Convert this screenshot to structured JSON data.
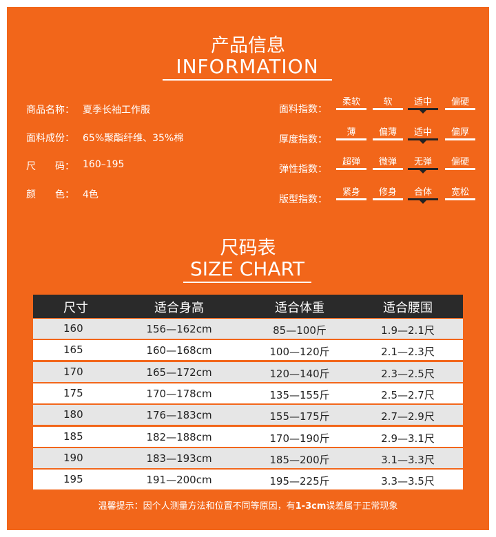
{
  "header": {
    "title": "产品信息",
    "subtitle": "INFORMATION"
  },
  "info": [
    {
      "label": "商品名称：",
      "value": "夏季长袖工作服"
    },
    {
      "label": "面料成份：",
      "value": "65%聚酯纤维、35%棉"
    },
    {
      "label": "尺　　码：",
      "value": "160–195"
    },
    {
      "label": "颜　　色：",
      "value": "4色"
    }
  ],
  "indices": [
    {
      "label": "面料指数：",
      "options": [
        "柔软",
        "软",
        "适中",
        "偏硬"
      ],
      "selected": 2
    },
    {
      "label": "厚度指数：",
      "options": [
        "薄",
        "偏薄",
        "适中",
        "偏厚"
      ],
      "selected": 2
    },
    {
      "label": "弹性指数：",
      "options": [
        "超弹",
        "微弹",
        "无弹",
        "偏硬"
      ],
      "selected": 2
    },
    {
      "label": "版型指数：",
      "options": [
        "紧身",
        "修身",
        "合体",
        "宽松"
      ],
      "selected": 2
    }
  ],
  "size_chart": {
    "title": "尺码表",
    "subtitle": "SIZE CHART",
    "columns": [
      "尺寸",
      "适合身高",
      "适合体重",
      "适合腰围"
    ],
    "rows": [
      [
        "160",
        "156—162cm",
        "85—100斤",
        "1.9—2.1尺"
      ],
      [
        "165",
        "160—168cm",
        "100—120斤",
        "2.1—2.3尺"
      ],
      [
        "170",
        "165—172cm",
        "120—140斤",
        "2.3—2.5尺"
      ],
      [
        "175",
        "170—178cm",
        "135—155斤",
        "2.5—2.7尺"
      ],
      [
        "180",
        "176—183cm",
        "155—175斤",
        "2.7—2.9尺"
      ],
      [
        "185",
        "182—188cm",
        "170—190斤",
        "2.9—3.1尺"
      ],
      [
        "190",
        "183—193cm",
        "185—200斤",
        "3.1—3.3尺"
      ],
      [
        "195",
        "191—200cm",
        "195—225斤",
        "3.3—3.5尺"
      ]
    ]
  },
  "note": {
    "before": "温馨提示：因个人测量方法和位置不同等原因，有",
    "bold": "1-3cm",
    "after": "误差属于正常现象"
  }
}
